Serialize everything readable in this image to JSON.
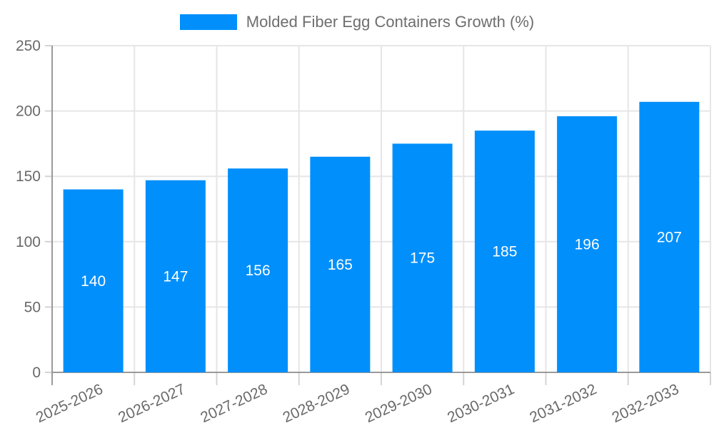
{
  "legend": {
    "label": "Molded Fiber Egg Containers Growth (%)"
  },
  "chart_data": {
    "type": "bar",
    "title": "",
    "xlabel": "",
    "ylabel": "",
    "series_name": "Molded Fiber Egg Containers Growth (%)",
    "categories": [
      "2025-2026",
      "2026-2027",
      "2027-2028",
      "2028-2029",
      "2029-2030",
      "2030-2031",
      "2031-2032",
      "2032-2033"
    ],
    "values": [
      140,
      147,
      156,
      165,
      175,
      185,
      196,
      207
    ],
    "value_labels": [
      "140",
      "147",
      "156",
      "165",
      "175",
      "185",
      "196",
      "207"
    ],
    "ylim": [
      0,
      250
    ],
    "yticks": [
      0,
      50,
      100,
      150,
      200,
      250
    ],
    "grid": true,
    "legend_position": "top",
    "x_label_rotation_deg": -25,
    "colors": {
      "bar": "#008FFB",
      "value_label": "#ffffff",
      "axis_text": "#696969",
      "legend_text": "#6e6e6e",
      "gridline": "#e6e6e6",
      "tick": "#d4d4d4",
      "axis_line": "#9a9a9a",
      "background": "#ffffff"
    }
  }
}
